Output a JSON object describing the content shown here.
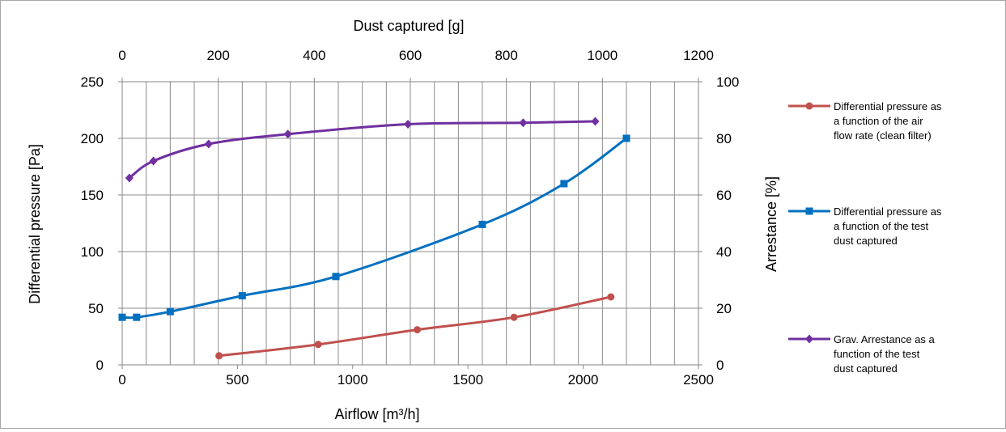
{
  "chart_data": {
    "type": "line",
    "axes": {
      "x_bottom": {
        "label": "Airflow  [m³/h]",
        "range": [
          0,
          2500
        ],
        "ticks": [
          "0",
          "500",
          "1000",
          "1500",
          "2000",
          "2500"
        ]
      },
      "x_top": {
        "label": "Dust captured [g]",
        "range": [
          0,
          1200
        ],
        "ticks": [
          "0",
          "200",
          "400",
          "600",
          "800",
          "1000",
          "1200"
        ]
      },
      "y_left": {
        "label": "Differential pressure [Pa]",
        "range": [
          0,
          250
        ],
        "ticks": [
          "0",
          "50",
          "100",
          "150",
          "200",
          "250"
        ]
      },
      "y_right": {
        "label": "Arrestance [%]",
        "range": [
          0,
          100
        ],
        "ticks": [
          "0",
          "20",
          "40",
          "60",
          "80",
          "100"
        ]
      }
    },
    "grid": true,
    "legend_position": "right",
    "series": [
      {
        "name": "Differential pressure as a function of the air flow rate (clean filter)",
        "x_axis": "x_bottom",
        "y_axis": "y_left",
        "color": "#c0504d",
        "marker": "circle",
        "points": [
          [
            420,
            8
          ],
          [
            850,
            18
          ],
          [
            1280,
            31
          ],
          [
            1700,
            42
          ],
          [
            2120,
            60
          ]
        ]
      },
      {
        "name": "Differential pressure as a function of the test dust captured",
        "x_axis": "x_top",
        "y_axis": "y_left",
        "color": "#0070c0",
        "marker": "square",
        "points": [
          [
            0,
            42
          ],
          [
            30,
            42
          ],
          [
            100,
            47
          ],
          [
            250,
            61
          ],
          [
            445,
            78
          ],
          [
            750,
            124
          ],
          [
            920,
            160
          ],
          [
            1050,
            200
          ]
        ]
      },
      {
        "name": "Grav. Arrestance as a function of the test dust captured",
        "x_axis": "x_top",
        "y_axis": "y_right",
        "color": "#7030a0",
        "marker": "diamond",
        "points": [
          [
            15,
            66
          ],
          [
            65,
            72
          ],
          [
            180,
            78
          ],
          [
            345,
            81.5
          ],
          [
            595,
            85
          ],
          [
            835,
            85.5
          ],
          [
            985,
            86
          ]
        ]
      }
    ]
  }
}
